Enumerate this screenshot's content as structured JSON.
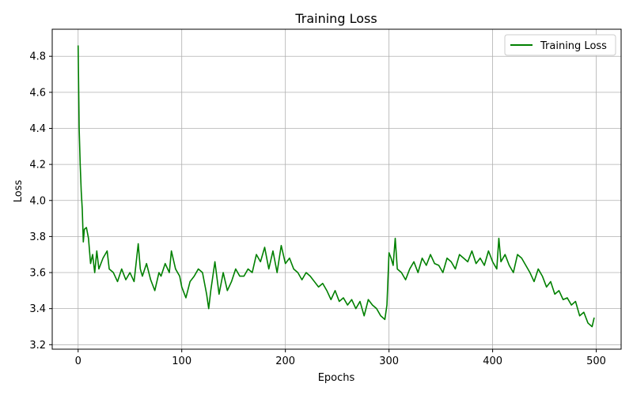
{
  "chart_data": {
    "type": "line",
    "title": "Training Loss",
    "xlabel": "Epochs",
    "ylabel": "Loss",
    "xlim": [
      -25,
      524
    ],
    "ylim": [
      3.175,
      4.95
    ],
    "xticks": [
      0,
      100,
      200,
      300,
      400,
      500
    ],
    "yticks": [
      3.2,
      3.4,
      3.6,
      3.8,
      4.0,
      4.2,
      4.4,
      4.6,
      4.8
    ],
    "grid": true,
    "legend_position": "top-right",
    "series": [
      {
        "name": "Training Loss",
        "color": "#008000",
        "x": [
          0,
          1,
          2,
          3,
          4,
          5,
          6,
          8,
          10,
          12,
          14,
          16,
          18,
          20,
          24,
          28,
          30,
          34,
          38,
          42,
          46,
          50,
          54,
          58,
          60,
          62,
          66,
          70,
          74,
          78,
          80,
          84,
          88,
          90,
          94,
          98,
          100,
          104,
          108,
          112,
          116,
          120,
          124,
          126,
          128,
          132,
          136,
          140,
          144,
          148,
          152,
          156,
          160,
          164,
          168,
          172,
          176,
          180,
          184,
          188,
          192,
          196,
          200,
          204,
          208,
          212,
          216,
          220,
          224,
          228,
          232,
          236,
          240,
          244,
          248,
          252,
          256,
          260,
          264,
          268,
          272,
          276,
          280,
          284,
          288,
          292,
          296,
          298,
          300,
          302,
          304,
          306,
          308,
          312,
          316,
          320,
          324,
          328,
          332,
          336,
          340,
          344,
          348,
          352,
          356,
          360,
          364,
          368,
          372,
          376,
          380,
          384,
          388,
          392,
          396,
          400,
          404,
          406,
          408,
          412,
          416,
          420,
          424,
          428,
          432,
          436,
          440,
          444,
          448,
          452,
          456,
          460,
          464,
          468,
          472,
          476,
          480,
          484,
          488,
          492,
          496,
          498
        ],
        "y": [
          4.86,
          4.4,
          4.2,
          4.05,
          3.95,
          3.77,
          3.84,
          3.85,
          3.79,
          3.65,
          3.7,
          3.6,
          3.72,
          3.62,
          3.68,
          3.72,
          3.62,
          3.6,
          3.55,
          3.62,
          3.56,
          3.6,
          3.55,
          3.76,
          3.62,
          3.58,
          3.65,
          3.56,
          3.5,
          3.6,
          3.58,
          3.65,
          3.6,
          3.72,
          3.62,
          3.58,
          3.52,
          3.46,
          3.55,
          3.58,
          3.62,
          3.6,
          3.48,
          3.4,
          3.5,
          3.66,
          3.48,
          3.6,
          3.5,
          3.55,
          3.62,
          3.58,
          3.58,
          3.62,
          3.6,
          3.7,
          3.66,
          3.74,
          3.62,
          3.72,
          3.6,
          3.75,
          3.65,
          3.68,
          3.62,
          3.6,
          3.56,
          3.6,
          3.58,
          3.55,
          3.52,
          3.54,
          3.5,
          3.45,
          3.5,
          3.44,
          3.46,
          3.42,
          3.45,
          3.4,
          3.44,
          3.36,
          3.45,
          3.42,
          3.4,
          3.36,
          3.34,
          3.42,
          3.71,
          3.68,
          3.64,
          3.79,
          3.62,
          3.6,
          3.56,
          3.62,
          3.66,
          3.6,
          3.68,
          3.64,
          3.7,
          3.65,
          3.64,
          3.6,
          3.68,
          3.66,
          3.62,
          3.7,
          3.68,
          3.66,
          3.72,
          3.65,
          3.68,
          3.64,
          3.72,
          3.66,
          3.62,
          3.79,
          3.66,
          3.7,
          3.64,
          3.6,
          3.7,
          3.68,
          3.64,
          3.6,
          3.55,
          3.62,
          3.58,
          3.52,
          3.55,
          3.48,
          3.5,
          3.45,
          3.46,
          3.42,
          3.44,
          3.36,
          3.38,
          3.32,
          3.3,
          3.35
        ]
      }
    ]
  }
}
